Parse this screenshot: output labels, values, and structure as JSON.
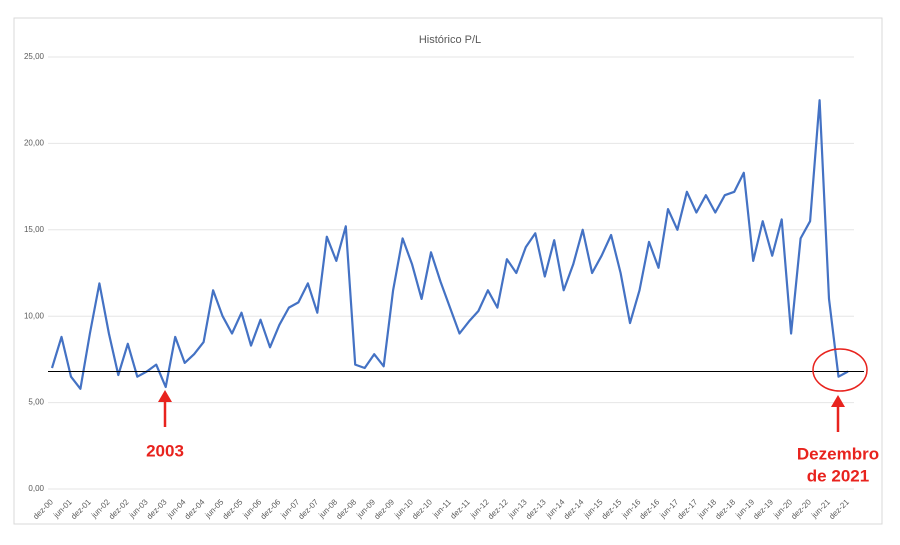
{
  "chart_data": {
    "type": "line",
    "title": "Histórico P/L",
    "categories": [
      "dez-00",
      null,
      "jun-01",
      null,
      "dez-01",
      null,
      "jun-02",
      null,
      "dez-02",
      null,
      "jun-03",
      null,
      "dez-03",
      null,
      "jun-04",
      null,
      "dez-04",
      null,
      "jun-05",
      null,
      "dez-05",
      null,
      "jun-06",
      null,
      "dez-06",
      null,
      "jun-07",
      null,
      "dez-07",
      null,
      "jun-08",
      null,
      "dez-08",
      null,
      "jun-09",
      null,
      "dez-09",
      null,
      "jun-10",
      null,
      "dez-10",
      null,
      "jun-11",
      null,
      "dez-11",
      null,
      "jun-12",
      null,
      "dez-12",
      null,
      "jun-13",
      null,
      "dez-13",
      null,
      "jun-14",
      null,
      "dez-14",
      null,
      "jun-15",
      null,
      "dez-15",
      null,
      "jun-16",
      null,
      "dez-16",
      null,
      "jun-17",
      null,
      "dez-17",
      null,
      "jun-18",
      null,
      "dez-18",
      null,
      "jun-19",
      null,
      "dez-19",
      null,
      "jun-20",
      null,
      "dez-20",
      null,
      "jun-21",
      null,
      "dez-21"
    ],
    "series": [
      {
        "color": "#4472c4",
        "values": [
          7.0,
          8.8,
          6.5,
          5.8,
          9.0,
          11.9,
          9.0,
          6.6,
          8.4,
          6.5,
          6.8,
          7.2,
          5.9,
          8.8,
          7.3,
          7.8,
          8.5,
          11.5,
          10.0,
          9.0,
          10.2,
          8.3,
          9.8,
          8.2,
          9.5,
          10.5,
          10.8,
          11.9,
          10.2,
          14.6,
          13.2,
          15.2,
          7.2,
          7.0,
          7.8,
          7.1,
          11.5,
          14.5,
          13.0,
          11.0,
          13.7,
          12.0,
          10.5,
          9.0,
          9.7,
          10.3,
          11.5,
          10.5,
          13.3,
          12.5,
          14.0,
          14.8,
          12.3,
          14.4,
          11.5,
          13.0,
          15.0,
          12.5,
          13.5,
          14.7,
          12.5,
          9.6,
          11.5,
          14.3,
          12.8,
          16.2,
          15.0,
          17.2,
          16.0,
          17.0,
          16.0,
          17.0,
          17.2,
          18.3,
          13.2,
          15.5,
          13.5,
          15.6,
          9.0,
          14.5,
          15.5,
          22.5,
          11.0,
          6.5,
          6.8
        ]
      }
    ],
    "ylim": [
      0,
      25
    ],
    "yticks": [
      {
        "value": 0,
        "label": "0,00"
      },
      {
        "value": 5,
        "label": "5,00"
      },
      {
        "value": 10,
        "label": "10,00"
      },
      {
        "value": 15,
        "label": "15,00"
      },
      {
        "value": 20,
        "label": "20,00"
      },
      {
        "value": 25,
        "label": "25,00"
      }
    ],
    "grid": true,
    "reference_line": 6.8,
    "annotations": [
      "2003",
      "Dezembro",
      "de 2021"
    ]
  }
}
